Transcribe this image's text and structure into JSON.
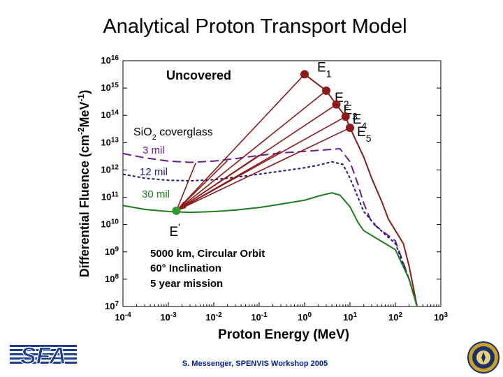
{
  "slide": {
    "title": "Analytical Proton Transport Model",
    "footer": "S. Messenger, SPENVIS Workshop 2005",
    "logo_text": "SFA"
  },
  "chart_data": {
    "type": "line",
    "title": "",
    "xlabel": "Proton Energy (MeV)",
    "ylabel_parts": [
      "Differential Fluence (cm",
      "-2",
      "MeV",
      "-1",
      ")"
    ],
    "xscale": "log",
    "yscale": "log",
    "xlim": [
      0.0001,
      1000
    ],
    "ylim": [
      10000000,
      10000000000000000
    ],
    "x_ticks": [
      {
        "value": 0.0001,
        "base": "10",
        "exp": "-4"
      },
      {
        "value": 0.001,
        "base": "10",
        "exp": "-3"
      },
      {
        "value": 0.01,
        "base": "10",
        "exp": "-2"
      },
      {
        "value": 0.1,
        "base": "10",
        "exp": "-1"
      },
      {
        "value": 1,
        "base": "10",
        "exp": "0"
      },
      {
        "value": 10,
        "base": "10",
        "exp": "1"
      },
      {
        "value": 100,
        "base": "10",
        "exp": "2"
      },
      {
        "value": 1000,
        "base": "10",
        "exp": "3"
      }
    ],
    "y_ticks": [
      {
        "value": 10000000,
        "base": "10",
        "exp": "7"
      },
      {
        "value": 100000000,
        "base": "10",
        "exp": "8"
      },
      {
        "value": 1000000000,
        "base": "10",
        "exp": "9"
      },
      {
        "value": 10000000000,
        "base": "10",
        "exp": "10"
      },
      {
        "value": 100000000000,
        "base": "10",
        "exp": "11"
      },
      {
        "value": 1000000000000,
        "base": "10",
        "exp": "12"
      },
      {
        "value": 10000000000000,
        "base": "10",
        "exp": "13"
      },
      {
        "value": 100000000000000,
        "base": "10",
        "exp": "14"
      },
      {
        "value": 1000000000000000,
        "base": "10",
        "exp": "15"
      },
      {
        "value": 10000000000000000,
        "base": "10",
        "exp": "16"
      }
    ],
    "grid": false,
    "series": [
      {
        "key": "uncovered",
        "color": "#8b1a1a",
        "dash": "solid",
        "points": [
          [
            1,
            3200000000000000.0
          ],
          [
            3,
            800000000000000.0
          ],
          [
            5,
            250000000000000.0
          ],
          [
            8,
            90000000000000.0
          ],
          [
            10,
            35000000000000.0
          ],
          [
            20,
            3000000000000.0
          ],
          [
            30,
            500000000000.0
          ],
          [
            50,
            70000000000.0
          ],
          [
            70,
            16000000000.0
          ],
          [
            100,
            6000000000.0
          ],
          [
            150,
            2000000000.0
          ],
          [
            200,
            300000000.0
          ],
          [
            300,
            10000000.0
          ]
        ]
      },
      {
        "key": "3 mil",
        "color": "#6a1b8a",
        "dash": "long",
        "points": [
          [
            0.0001,
            4000000000000.0
          ],
          [
            0.0003,
            2800000000000.0
          ],
          [
            0.001,
            2100000000000.0
          ],
          [
            0.003,
            1900000000000.0
          ],
          [
            0.01,
            2100000000000.0
          ],
          [
            0.03,
            2600000000000.0
          ],
          [
            0.1,
            3400000000000.0
          ],
          [
            0.3,
            4200000000000.0
          ],
          [
            1,
            4800000000000.0
          ],
          [
            3,
            5500000000000.0
          ],
          [
            6,
            6000000000000.0
          ],
          [
            10,
            2000000000000.0
          ],
          [
            15,
            300000000000.0
          ],
          [
            20,
            60000000000.0
          ],
          [
            30,
            12000000000.0
          ],
          [
            50,
            6000000000.0
          ],
          [
            100,
            2500000000.0
          ],
          [
            200,
            100000000.0
          ],
          [
            300,
            10000000.0
          ]
        ]
      },
      {
        "key": "12 mil",
        "color": "#1a1a7a",
        "dash": "short",
        "points": [
          [
            0.0001,
            700000000000.0
          ],
          [
            0.0003,
            500000000000.0
          ],
          [
            0.001,
            420000000000.0
          ],
          [
            0.003,
            400000000000.0
          ],
          [
            0.01,
            440000000000.0
          ],
          [
            0.03,
            540000000000.0
          ],
          [
            0.1,
            700000000000.0
          ],
          [
            0.3,
            900000000000.0
          ],
          [
            1,
            1200000000000.0
          ],
          [
            2,
            1500000000000.0
          ],
          [
            4,
            2000000000000.0
          ],
          [
            7,
            1600000000000.0
          ],
          [
            10,
            500000000000.0
          ],
          [
            15,
            100000000000.0
          ],
          [
            20,
            30000000000.0
          ],
          [
            40,
            8000000000.0
          ],
          [
            100,
            2000000000.0
          ],
          [
            200,
            100000000.0
          ],
          [
            300,
            10000000.0
          ]
        ]
      },
      {
        "key": "30 mil",
        "color": "#1e7a1e",
        "dash": "solid",
        "points": [
          [
            0.0001,
            50000000000.0
          ],
          [
            0.0003,
            36000000000.0
          ],
          [
            0.001,
            30000000000.0
          ],
          [
            0.003,
            28000000000.0
          ],
          [
            0.01,
            30000000000.0
          ],
          [
            0.03,
            34000000000.0
          ],
          [
            0.1,
            42000000000.0
          ],
          [
            0.3,
            56000000000.0
          ],
          [
            1,
            78000000000.0
          ],
          [
            2,
            110000000000.0
          ],
          [
            4,
            145000000000.0
          ],
          [
            6,
            120000000000.0
          ],
          [
            10,
            45000000000.0
          ],
          [
            15,
            12000000000.0
          ],
          [
            20,
            6000000000.0
          ],
          [
            40,
            3000000000.0
          ],
          [
            100,
            1200000000.0
          ],
          [
            200,
            100000000.0
          ],
          [
            300,
            10000000.0
          ]
        ]
      }
    ],
    "rays": {
      "color": "#8b1a1a",
      "origin": [
        0.0015,
        32000000000.0
      ],
      "targets": [
        [
          1,
          3200000000000000.0
        ],
        [
          3,
          800000000000000.0
        ],
        [
          5,
          250000000000000.0
        ],
        [
          8,
          90000000000000.0
        ],
        [
          10,
          35000000000000.0
        ],
        [
          0.3,
          5000000000000.0
        ],
        [
          0.1,
          3500000000000.0
        ],
        [
          0.02,
          2200000000000.0
        ],
        [
          0.004,
          1800000000000.0
        ]
      ]
    },
    "markers": [
      {
        "label": "E",
        "sub": "1",
        "x": 1,
        "y": 3200000000000000.0,
        "color": "#8b1a1a"
      },
      {
        "label": "E",
        "sub": "2",
        "x": 3,
        "y": 800000000000000.0,
        "color": "#8b1a1a"
      },
      {
        "label": "E",
        "sub": "3",
        "x": 5,
        "y": 250000000000000.0,
        "color": "#8b1a1a"
      },
      {
        "label": "E",
        "sub": "4",
        "x": 8,
        "y": 90000000000000.0,
        "color": "#8b1a1a"
      },
      {
        "label": "E",
        "sub": "5",
        "x": 10,
        "y": 35000000000000.0,
        "color": "#8b1a1a"
      },
      {
        "label": "E",
        "sub": "'",
        "x": 0.0015,
        "y": 32000000000.0,
        "color": "#2e9a2e"
      }
    ],
    "annotations": {
      "uncovered": "Uncovered",
      "coverglass_parts": [
        "Si",
        "O",
        "2",
        " coverglass"
      ],
      "mil3": "3 mil",
      "mil12": "12 mil",
      "mil30": "30 mil",
      "orbit": [
        "5000 km, Circular Orbit",
        "60° Inclination",
        "5 year mission"
      ]
    }
  }
}
